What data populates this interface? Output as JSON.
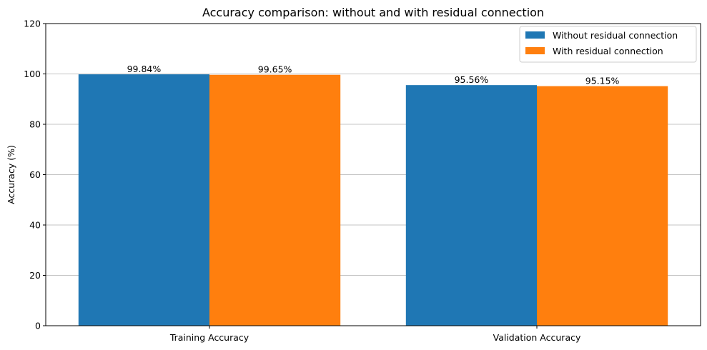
{
  "chart_data": {
    "type": "bar",
    "title": "Accuracy comparison: without and with residual connection",
    "xlabel": "",
    "ylabel": "Accuracy (%)",
    "ylim": [
      0,
      120
    ],
    "yticks": [
      0,
      20,
      40,
      60,
      80,
      100,
      120
    ],
    "ytick_labels": [
      "0",
      "20",
      "40",
      "60",
      "80",
      "100",
      "120"
    ],
    "grid": "y",
    "legend_position": "top-right",
    "categories": [
      "Training Accuracy",
      "Validation Accuracy"
    ],
    "series": [
      {
        "name": "Without residual connection",
        "color": "#1f77b4",
        "values": [
          99.84,
          95.56
        ],
        "labels": [
          "99.84%",
          "95.56%"
        ]
      },
      {
        "name": "With residual connection",
        "color": "#ff7f0e",
        "values": [
          99.65,
          95.15
        ],
        "labels": [
          "99.65%",
          "95.15%"
        ]
      }
    ]
  }
}
